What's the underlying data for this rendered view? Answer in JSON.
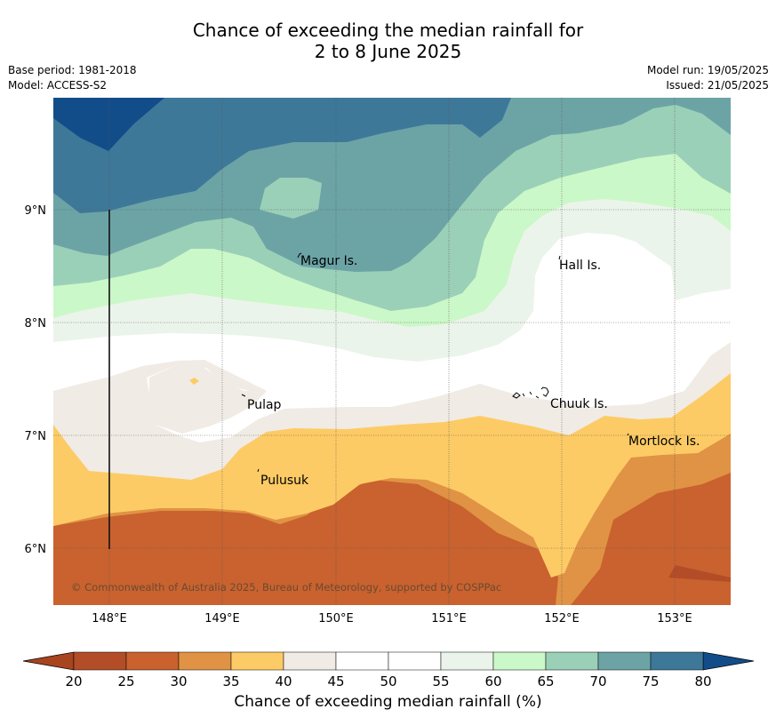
{
  "title": {
    "line1": "Chance of exceeding the median rainfall for",
    "line2": "2 to 8 June 2025"
  },
  "meta_left": {
    "base_period": "Base period: 1981-2018",
    "model": "Model: ACCESS-S2"
  },
  "meta_right": {
    "model_run": "Model run: 19/05/2025",
    "issued": "Issued: 21/05/2025"
  },
  "axes": {
    "lon_labels": [
      "148°E",
      "149°E",
      "150°E",
      "151°E",
      "152°E",
      "153°E"
    ],
    "lat_labels": [
      "9°N",
      "8°N",
      "7°N",
      "6°N"
    ]
  },
  "places": [
    {
      "name": "Magur Is.",
      "lon": 149.7,
      "lat": 8.55
    },
    {
      "name": "Hall Is.",
      "lon": 152.0,
      "lat": 8.52
    },
    {
      "name": "Pulap",
      "lon": 149.2,
      "lat": 7.32
    },
    {
      "name": "Chuuk Is.",
      "lon": 151.85,
      "lat": 7.35
    },
    {
      "name": "Mortlock Is.",
      "lon": 152.6,
      "lat": 6.98
    },
    {
      "name": "Pulusuk",
      "lon": 149.3,
      "lat": 6.65
    }
  ],
  "copyright": "© Commonwealth of Australia 2025, Bureau of Meteorology, supported by COSPPac",
  "colorbar": {
    "ticks": [
      "20",
      "25",
      "30",
      "35",
      "40",
      "45",
      "50",
      "55",
      "60",
      "65",
      "70",
      "75",
      "80"
    ],
    "colors": [
      "#b34d28",
      "#c9622f",
      "#e09344",
      "#fdcb65",
      "#f0ebe5",
      "#ffffff",
      "#ffffff",
      "#ebf4ea",
      "#cbf8c8",
      "#9bd0b8",
      "#6ca4a6",
      "#3e7899"
    ],
    "under_color": "#a8441f",
    "over_color": "#124d8a",
    "label": "Chance of exceeding median rainfall (%)"
  }
}
